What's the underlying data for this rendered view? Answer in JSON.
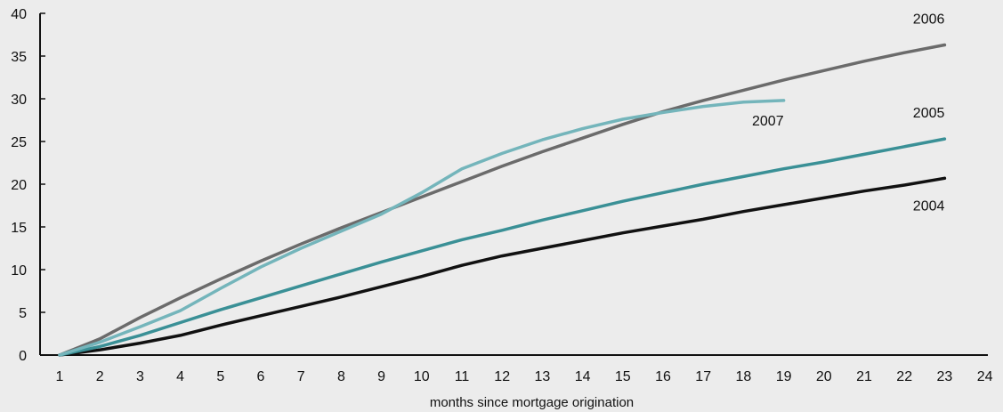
{
  "chart_data": {
    "type": "line",
    "title": "",
    "xlabel": "months since mortgage origination",
    "ylabel": "",
    "xlim": [
      1,
      24
    ],
    "ylim": [
      0,
      40
    ],
    "x_ticks": [
      "1",
      "2",
      "3",
      "4",
      "5",
      "6",
      "7",
      "8",
      "9",
      "10",
      "11",
      "12",
      "13",
      "14",
      "15",
      "16",
      "17",
      "18",
      "19",
      "20",
      "21",
      "22",
      "23",
      "24"
    ],
    "y_ticks": [
      "0",
      "5",
      "10",
      "15",
      "20",
      "25",
      "30",
      "35",
      "40"
    ],
    "grid": false,
    "legend": "none",
    "series": [
      {
        "name": "2004",
        "color": "#111111",
        "x": [
          1,
          2,
          3,
          4,
          5,
          6,
          7,
          8,
          9,
          10,
          11,
          12,
          13,
          14,
          15,
          16,
          17,
          18,
          19,
          20,
          21,
          22,
          23
        ],
        "y": [
          0,
          0.6,
          1.4,
          2.3,
          3.5,
          4.6,
          5.7,
          6.8,
          8.0,
          9.2,
          10.5,
          11.6,
          12.5,
          13.4,
          14.3,
          15.1,
          15.9,
          16.8,
          17.6,
          18.4,
          19.2,
          19.9,
          20.7
        ]
      },
      {
        "name": "2005",
        "color": "#3a9096",
        "x": [
          1,
          2,
          3,
          4,
          5,
          6,
          7,
          8,
          9,
          10,
          11,
          12,
          13,
          14,
          15,
          16,
          17,
          18,
          19,
          20,
          21,
          22,
          23
        ],
        "y": [
          0,
          1.0,
          2.3,
          3.8,
          5.3,
          6.7,
          8.1,
          9.5,
          10.9,
          12.2,
          13.5,
          14.6,
          15.8,
          16.9,
          18.0,
          19.0,
          20.0,
          20.9,
          21.8,
          22.6,
          23.5,
          24.4,
          25.3
        ]
      },
      {
        "name": "2006",
        "color": "#6b6b6b",
        "x": [
          1,
          2,
          3,
          4,
          5,
          6,
          7,
          8,
          9,
          10,
          11,
          12,
          13,
          14,
          15,
          16,
          17,
          18,
          19,
          20,
          21,
          22,
          23
        ],
        "y": [
          0,
          1.9,
          4.4,
          6.7,
          8.9,
          11.0,
          13.0,
          14.9,
          16.7,
          18.5,
          20.3,
          22.1,
          23.8,
          25.4,
          27.0,
          28.5,
          29.8,
          31.0,
          32.2,
          33.3,
          34.4,
          35.4,
          36.3
        ]
      },
      {
        "name": "2007",
        "color": "#74b5bb",
        "x": [
          1,
          2,
          3,
          4,
          5,
          6,
          7,
          8,
          9,
          10,
          11,
          12,
          13,
          14,
          15,
          16,
          17,
          18,
          19
        ],
        "y": [
          0,
          1.5,
          3.3,
          5.2,
          7.8,
          10.3,
          12.5,
          14.5,
          16.5,
          19.0,
          21.8,
          23.6,
          25.2,
          26.5,
          27.6,
          28.4,
          29.1,
          29.6,
          29.8
        ]
      }
    ]
  }
}
